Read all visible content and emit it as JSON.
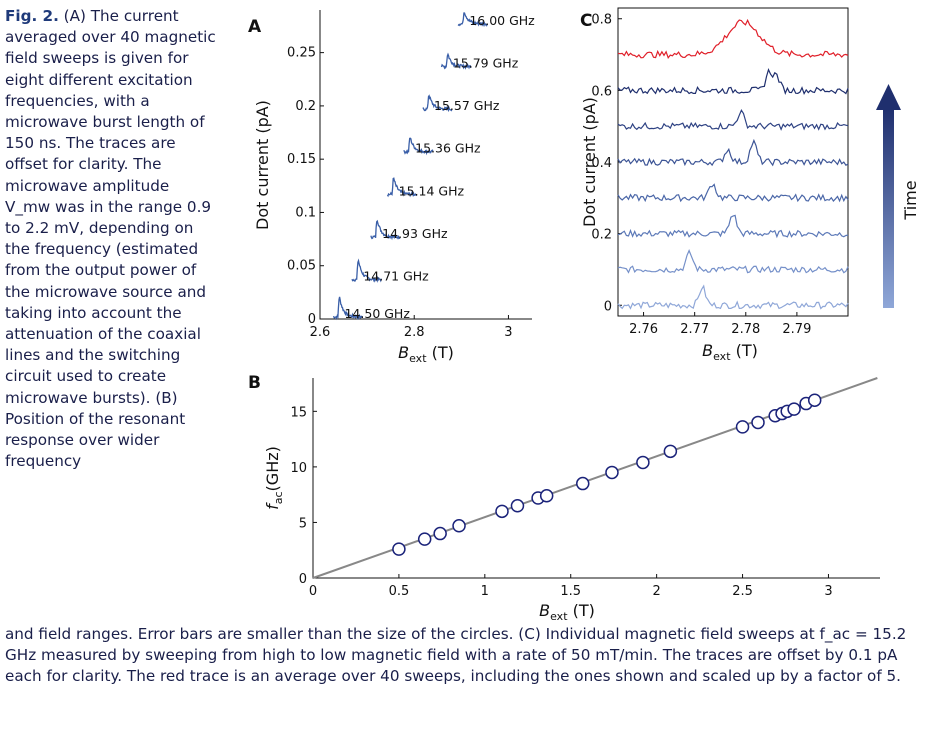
{
  "caption": {
    "lead": "Fig. 2.",
    "left_text": " (A) The current averaged over 40 magnetic field sweeps is given for eight different excitation frequencies, with a microwave burst length of 150 ns. The traces are offset for clarity. The microwave amplitude V_mw was in the range 0.9 to 2.2 mV, depending on the frequency (estimated from the output power of the microwave source and taking into account the attenuation of the coaxial lines and the switching circuit used to create microwave bursts). (B) Position of the resonant response over wider frequency",
    "bottom_text": "and field ranges. Error bars are smaller than the size of the circles. (C) Individual magnetic field sweeps at f_ac = 15.2 GHz measured by sweeping from high to low magnetic field with a rate of 50 mT/min. The traces are offset by 0.1 pA each for clarity. The red trace is an average over 40 sweeps, including the ones shown and scaled up by a factor of 5."
  },
  "chart_data": [
    {
      "panel": "A",
      "type": "line",
      "ylabel": "Dot current (pA)",
      "xlabel": "B_ext (T)",
      "xlim": [
        2.6,
        3.05
      ],
      "ylim": [
        0,
        0.29
      ],
      "xticks": [
        "2.6",
        "2.8",
        "3"
      ],
      "yticks": [
        "0",
        "0.05",
        "0.1",
        "0.15",
        "0.2",
        "0.25"
      ],
      "color": "#3a5fa8",
      "series": [
        {
          "name": "14.50 GHz",
          "peak_B": 2.64,
          "offset": 0.0,
          "peak_height": 0.022
        },
        {
          "name": "14.71 GHz",
          "peak_B": 2.68,
          "offset": 0.035,
          "peak_height": 0.022
        },
        {
          "name": "14.93 GHz",
          "peak_B": 2.72,
          "offset": 0.075,
          "peak_height": 0.02
        },
        {
          "name": "15.14 GHz",
          "peak_B": 2.755,
          "offset": 0.115,
          "peak_height": 0.018
        },
        {
          "name": "15.36 GHz",
          "peak_B": 2.79,
          "offset": 0.155,
          "peak_height": 0.016
        },
        {
          "name": "15.57 GHz",
          "peak_B": 2.83,
          "offset": 0.195,
          "peak_height": 0.016
        },
        {
          "name": "15.79 GHz",
          "peak_B": 2.87,
          "offset": 0.235,
          "peak_height": 0.014
        },
        {
          "name": "16.00 GHz",
          "peak_B": 2.905,
          "offset": 0.275,
          "peak_height": 0.014
        }
      ]
    },
    {
      "panel": "B",
      "type": "scatter",
      "ylabel": "f_ac(GHz)",
      "xlabel": "B_ext (T)",
      "xlim": [
        0,
        3.3
      ],
      "ylim": [
        0,
        18
      ],
      "xticks": [
        "0",
        "0.5",
        "1",
        "1.5",
        "2",
        "2.5",
        "3"
      ],
      "yticks": [
        "0",
        "5",
        "10",
        "15"
      ],
      "fit_line": {
        "slope": 5.48,
        "intercept": 0
      },
      "x": [
        0.5,
        0.65,
        0.74,
        0.85,
        1.1,
        1.19,
        1.31,
        1.36,
        1.57,
        1.74,
        1.92,
        2.08,
        2.5,
        2.59,
        2.69,
        2.73,
        2.76,
        2.8,
        2.87,
        2.92
      ],
      "y": [
        2.6,
        3.5,
        4.0,
        4.7,
        6.0,
        6.5,
        7.2,
        7.4,
        8.5,
        9.5,
        10.4,
        11.4,
        13.6,
        14.0,
        14.6,
        14.8,
        15.0,
        15.2,
        15.7,
        16.0
      ]
    },
    {
      "panel": "C",
      "type": "line",
      "ylabel": "Dot current (pA)",
      "xlabel": "B_ext (T)",
      "xlim": [
        2.755,
        2.8
      ],
      "ylim": [
        -0.03,
        0.83
      ],
      "xticks": [
        "2.76",
        "2.77",
        "2.78",
        "2.79"
      ],
      "yticks": [
        "0",
        "0.2",
        "0.4",
        "0.6",
        "0.8"
      ],
      "time_label": "Time",
      "series": [
        {
          "offset": 0.0,
          "color": "#8fa7d8",
          "peaks": [
            [
              2.7715,
              0.05
            ]
          ]
        },
        {
          "offset": 0.1,
          "color": "#7590c9",
          "peaks": [
            [
              2.769,
              0.045
            ]
          ]
        },
        {
          "offset": 0.2,
          "color": "#5c79b8",
          "peaks": [
            [
              2.7775,
              0.055
            ]
          ]
        },
        {
          "offset": 0.3,
          "color": "#4b67a8",
          "peaks": [
            [
              2.7735,
              0.04
            ]
          ]
        },
        {
          "offset": 0.4,
          "color": "#3d5596",
          "peaks": [
            [
              2.7765,
              0.035
            ],
            [
              2.7815,
              0.055
            ]
          ]
        },
        {
          "offset": 0.5,
          "color": "#2e4283",
          "peaks": [
            [
              2.779,
              0.04
            ]
          ]
        },
        {
          "offset": 0.6,
          "color": "#1f2f6e",
          "peaks": [
            [
              2.7845,
              0.05
            ],
            [
              2.786,
              0.04
            ]
          ]
        },
        {
          "offset": 0.7,
          "color": "#e0202a",
          "peaks": [
            [
              2.7795,
              0.09
            ]
          ]
        }
      ]
    }
  ]
}
